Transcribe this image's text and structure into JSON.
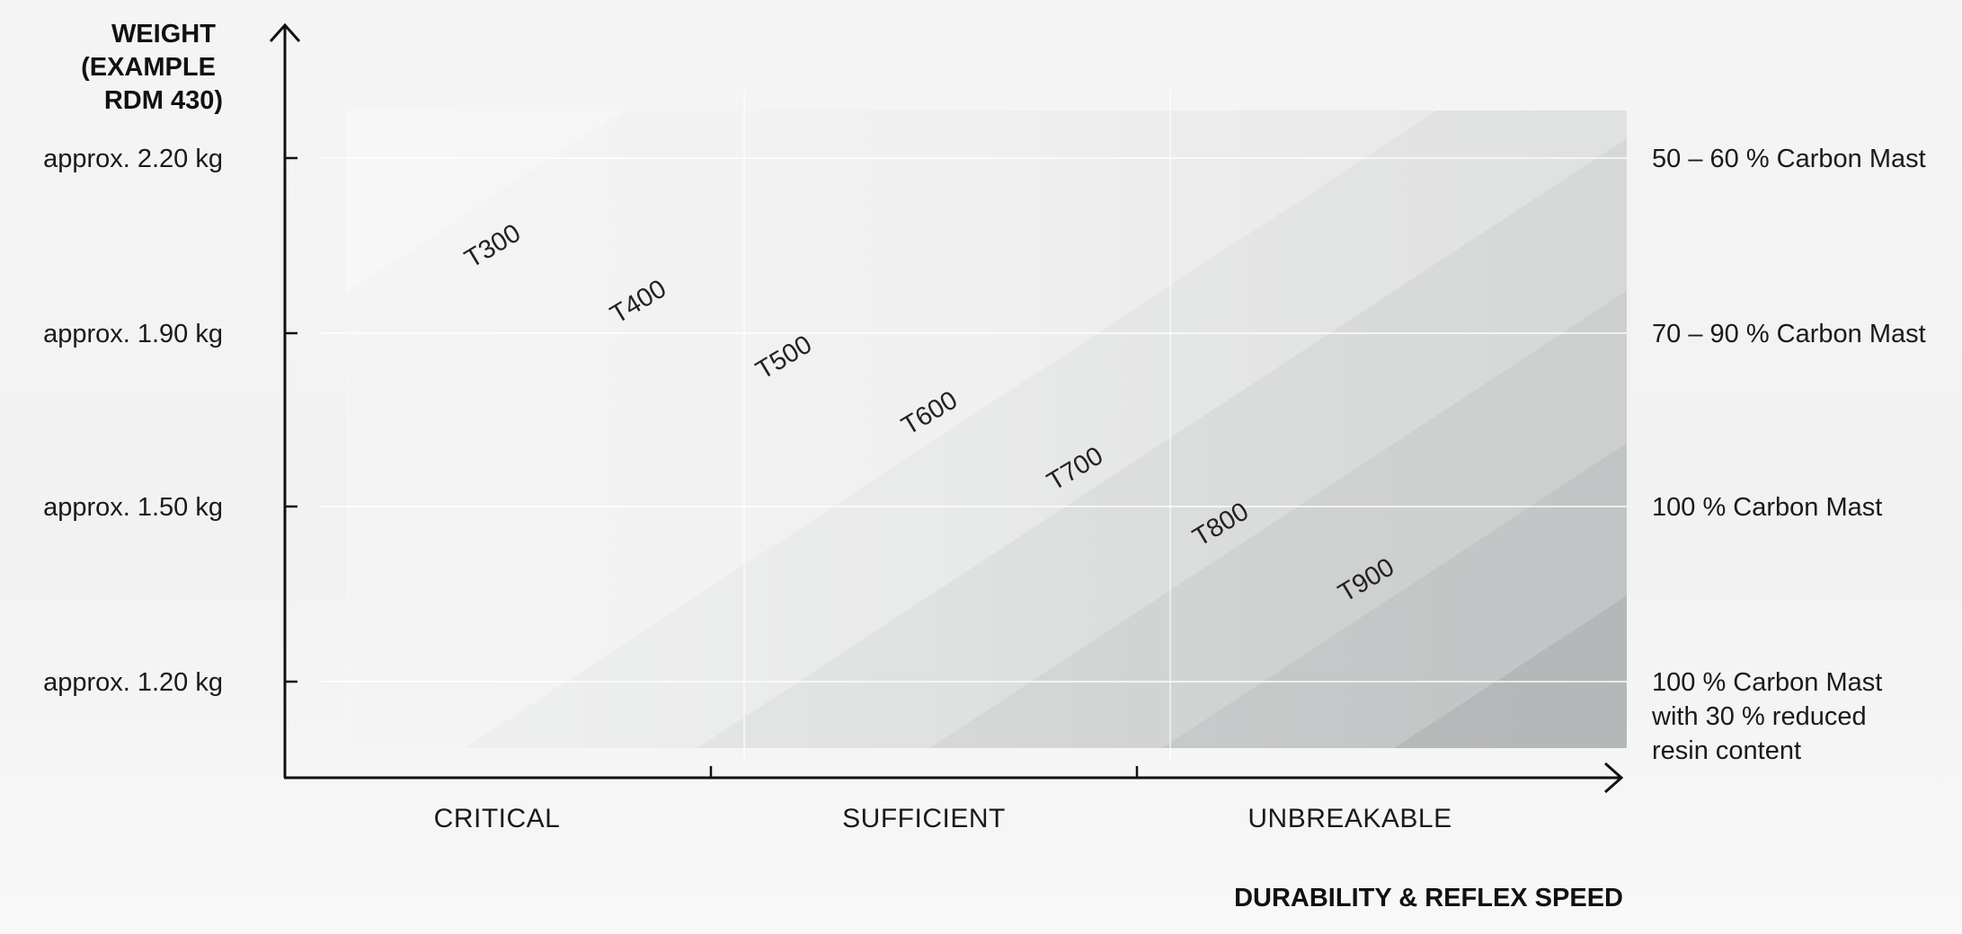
{
  "chart_data": {
    "type": "area",
    "ylabel_lines": [
      "WEIGHT",
      "(EXAMPLE",
      "RDM 430)"
    ],
    "xlabel": "DURABILITY & REFLEX SPEED",
    "y_ticks": [
      {
        "value": 2.2,
        "label": "approx. 2.20 kg",
        "right_lines": [
          "50 – 60 % Carbon Mast"
        ]
      },
      {
        "value": 1.9,
        "label": "approx. 1.90 kg",
        "right_lines": [
          "70 – 90 % Carbon Mast"
        ]
      },
      {
        "value": 1.5,
        "label": "approx. 1.50 kg",
        "right_lines": [
          "100 % Carbon Mast"
        ]
      },
      {
        "value": 1.2,
        "label": "approx. 1.20 kg",
        "right_lines": [
          "100 % Carbon Mast",
          "with 30 % reduced",
          "resin content"
        ]
      }
    ],
    "categories": [
      "CRITICAL",
      "SUFFICIENT",
      "UNBREAKABLE"
    ],
    "bands": [
      {
        "name": "T300",
        "color": "#efefef"
      },
      {
        "name": "T400",
        "color": "#e7e8e8"
      },
      {
        "name": "T500",
        "color": "#dddfdf"
      },
      {
        "name": "T600",
        "color": "#d3d5d5"
      },
      {
        "name": "T700",
        "color": "#c8cbcb"
      },
      {
        "name": "T800",
        "color": "#babdbe"
      },
      {
        "name": "T900",
        "color": "#adb0b1"
      },
      {
        "name": "",
        "color": "#a0a3a5"
      }
    ],
    "grid": true
  }
}
